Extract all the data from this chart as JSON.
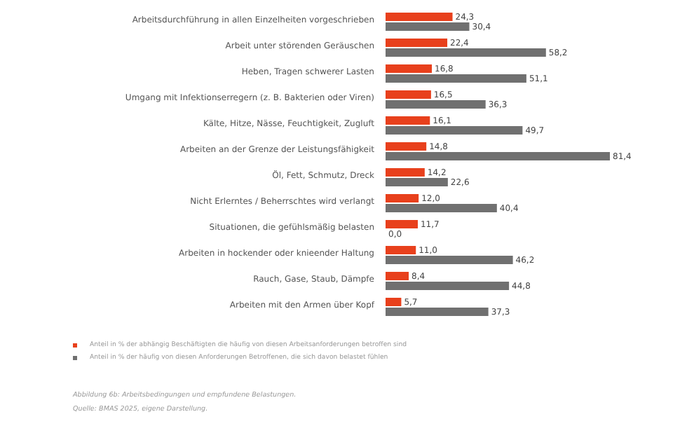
{
  "chart_data": {
    "type": "bar",
    "orientation": "horizontal",
    "legend": "bottom left",
    "categories": [
      "Arbeitsdurchführung in allen Einzelheiten vorgeschrieben",
      "Arbeit unter störenden Geräuschen",
      "Heben, Tragen schwerer Lasten",
      "Umgang mit Infektionserregern (z. B. Bakterien oder Viren)",
      "Kälte, Hitze, Nässe, Feuchtigkeit, Zugluft",
      "Arbeiten an der Grenze der Leistungsfähigkeit",
      "Öl, Fett, Schmutz, Dreck",
      "Nicht Erlerntes / Beherrschtes wird verlangt",
      "Situationen, die gefühlsmäßig belasten",
      "Arbeiten in hockender oder knieender Haltung",
      "Rauch, Gase, Staub, Dämpfe",
      "Arbeiten mit den Armen über Kopf"
    ],
    "series": [
      {
        "name": "Anteil in % der abhängig Beschäftigten die häufig von diesen Arbeitsanforderungen betroffen sind",
        "color": "#e8401c",
        "values": [
          24.3,
          22.4,
          16.8,
          16.5,
          16.1,
          14.8,
          14.2,
          12.0,
          11.7,
          11.0,
          8.4,
          5.7
        ],
        "value_labels": [
          "24,3",
          "22,4",
          "16,8",
          "16,5",
          "16,1",
          "14,8",
          "14,2",
          "12,0",
          "11,7",
          "11,0",
          "8,4",
          "5,7"
        ]
      },
      {
        "name": "Anteil in % der häufig von diesen Anforderungen Betroffenen, die sich davon belastet fühlen",
        "color": "#707070",
        "values": [
          30.4,
          58.2,
          51.1,
          36.3,
          49.7,
          81.4,
          22.6,
          40.4,
          0.0,
          46.2,
          44.8,
          37.3
        ],
        "value_labels": [
          "30,4",
          "58,2",
          "51,1",
          "36,3",
          "49,7",
          "81,4",
          "22,6",
          "40,4",
          "0,0",
          "46,2",
          "44,8",
          "37,3"
        ]
      }
    ],
    "annotations": [
      "Abbildung 6b: Arbeitsbedingungen und empfundene Belastungen.",
      "Quelle: BMAS 2025, eigene Darstellung."
    ]
  }
}
